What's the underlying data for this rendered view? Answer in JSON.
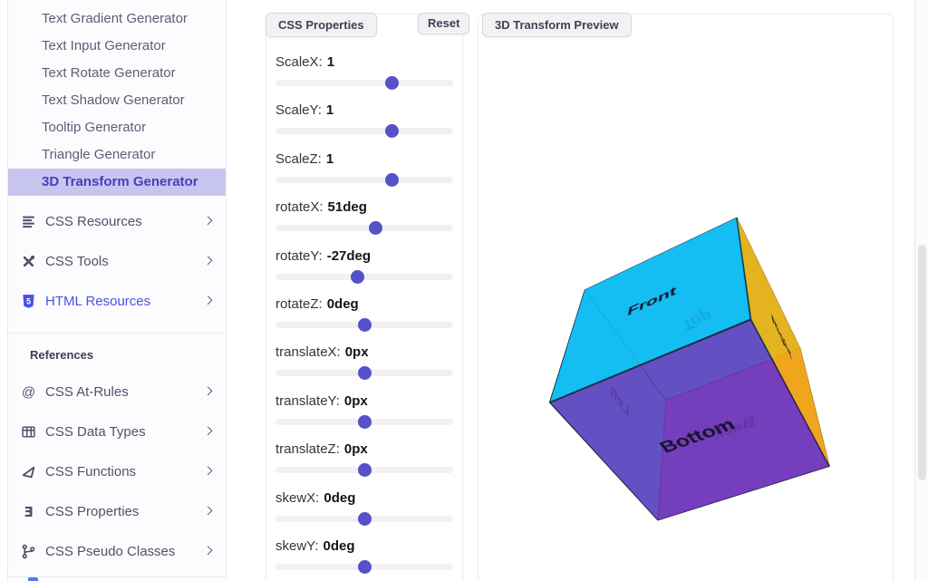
{
  "colors": {
    "accent": "#5551c9",
    "highlight_bg": "#c7c5ef",
    "highlight_text": "#463eba",
    "link": "#4c51e6"
  },
  "sidebar": {
    "generators": [
      {
        "label": "Text Gradient Generator",
        "active": false
      },
      {
        "label": "Text Input Generator",
        "active": false
      },
      {
        "label": "Text Rotate Generator",
        "active": false
      },
      {
        "label": "Text Shadow Generator",
        "active": false
      },
      {
        "label": "Tooltip Generator",
        "active": false
      },
      {
        "label": "Triangle Generator",
        "active": false
      },
      {
        "label": "3D Transform Generator",
        "active": true
      }
    ],
    "sections": [
      {
        "icon": "list-lines-icon",
        "label": "CSS Resources",
        "accent": false
      },
      {
        "icon": "tools-icon",
        "label": "CSS Tools",
        "accent": false
      },
      {
        "icon": "html5-icon",
        "label": "HTML Resources",
        "accent": true
      }
    ],
    "references_title": "References",
    "references": [
      {
        "icon": "at-sign-icon",
        "label": "CSS At-Rules",
        "accent": false
      },
      {
        "icon": "table-icon",
        "label": "CSS Data Types",
        "accent": false
      },
      {
        "icon": "function-triangle-icon",
        "label": "CSS Functions",
        "accent": false
      },
      {
        "icon": "css3-icon",
        "label": "CSS Properties",
        "accent": false
      },
      {
        "icon": "branch-icon",
        "label": "CSS Pseudo Classes",
        "accent": false
      }
    ]
  },
  "properties_panel": {
    "title": "CSS Properties",
    "reset_label": "Reset",
    "sliders": [
      {
        "label": "ScaleX:",
        "value": "1",
        "percent": 67
      },
      {
        "label": "ScaleY:",
        "value": "1",
        "percent": 67
      },
      {
        "label": "ScaleZ:",
        "value": "1",
        "percent": 67
      },
      {
        "label": "rotateX:",
        "value": "51deg",
        "percent": 57
      },
      {
        "label": "rotateY:",
        "value": "-27deg",
        "percent": 46
      },
      {
        "label": "rotateZ:",
        "value": "0deg",
        "percent": 50
      },
      {
        "label": "translateX:",
        "value": "0px",
        "percent": 50
      },
      {
        "label": "translateY:",
        "value": "0px",
        "percent": 50
      },
      {
        "label": "translateZ:",
        "value": "0px",
        "percent": 50
      },
      {
        "label": "skewX:",
        "value": "0deg",
        "percent": 50
      },
      {
        "label": "skewY:",
        "value": "0deg",
        "percent": 50
      }
    ]
  },
  "preview_panel": {
    "title": "3D Transform Preview",
    "transform": {
      "rotateX": "51deg",
      "rotateY": "-27deg"
    },
    "cube_faces": [
      {
        "name": "front",
        "label": "Front",
        "color": "rgba(20,186,243,0.9)"
      },
      {
        "name": "back",
        "label": "Back",
        "color": "rgba(118,62,180,0.85)"
      },
      {
        "name": "right",
        "label": "Right",
        "color": "rgba(250,174,10,0.9)"
      },
      {
        "name": "left",
        "label": "Left",
        "color": "rgba(0,215,230,0.92)"
      },
      {
        "name": "top",
        "label": "Top",
        "color": "rgba(0,215,230,0.92)"
      },
      {
        "name": "bottom",
        "label": "Bottom",
        "color": "rgba(113,56,188,0.85)"
      }
    ]
  }
}
